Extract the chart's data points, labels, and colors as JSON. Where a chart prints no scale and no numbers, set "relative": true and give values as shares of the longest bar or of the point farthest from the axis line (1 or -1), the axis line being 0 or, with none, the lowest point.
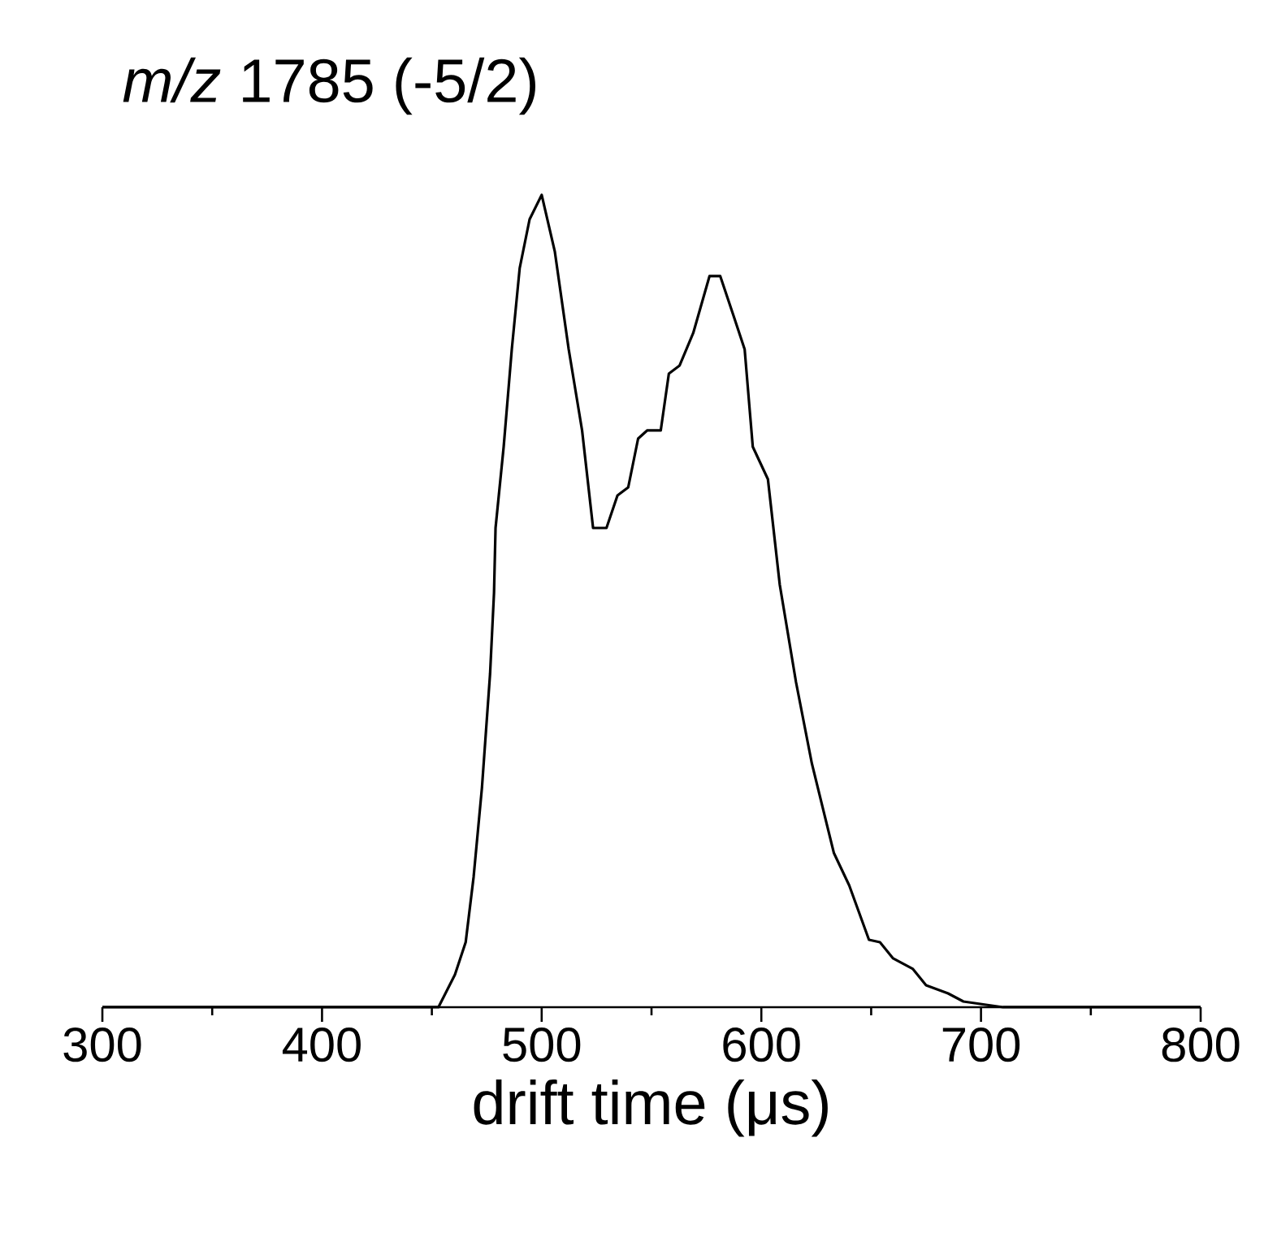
{
  "chart_data": {
    "type": "line",
    "title": "*m/z* 1785 (-5/2)",
    "xlabel": "drift time (μs)",
    "relative": true,
    "xlim": [
      300,
      800
    ],
    "xticks": [
      300,
      400,
      500,
      600,
      700,
      800
    ],
    "series": [
      {
        "color": "#000000",
        "x": [
          300,
          453,
          460.5,
          465.4,
          469,
          472.8,
          476.5,
          478.3,
          479,
          482.7,
          486.4,
          490,
          494.5,
          500,
          506,
          512.3,
          518.4,
          523.4,
          529.5,
          534.5,
          539.4,
          543.9,
          548,
          554.2,
          557.9,
          562.8,
          569,
          576.4,
          581.3,
          587.5,
          592.4,
          596.1,
          603,
          608.4,
          615.8,
          623,
          633,
          640,
          649,
          654,
          660,
          669,
          675,
          685,
          692,
          710,
          800
        ],
        "values": [
          0,
          0,
          0.04,
          0.08,
          0.16,
          0.27,
          0.41,
          0.51,
          0.59,
          0.69,
          0.81,
          0.91,
          0.97,
          1.0,
          0.93,
          0.81,
          0.71,
          0.59,
          0.59,
          0.63,
          0.64,
          0.7,
          0.71,
          0.71,
          0.78,
          0.79,
          0.83,
          0.9,
          0.9,
          0.85,
          0.81,
          0.69,
          0.65,
          0.52,
          0.4,
          0.3,
          0.19,
          0.15,
          0.083,
          0.08,
          0.06,
          0.047,
          0.027,
          0.017,
          0.007,
          0,
          0
        ]
      }
    ]
  }
}
